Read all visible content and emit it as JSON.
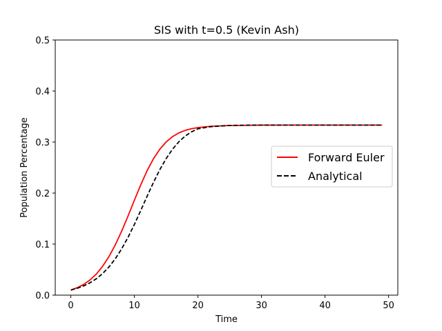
{
  "chart_data": {
    "type": "line",
    "title": "SIS with t=0.5 (Kevin Ash)",
    "xlabel": "Time",
    "ylabel": "Population Percentage",
    "xlim": [
      -2.45,
      51.45
    ],
    "ylim": [
      0,
      0.5
    ],
    "xticks": [
      "0",
      "10",
      "20",
      "30",
      "40",
      "50"
    ],
    "yticks": [
      "0.0",
      "0.1",
      "0.2",
      "0.3",
      "0.4",
      "0.5"
    ],
    "grid": false,
    "legend_position": "center-right",
    "series": [
      {
        "name": "Forward Euler",
        "color": "#ff0000",
        "style": "solid",
        "x": [
          0,
          1,
          2,
          3,
          4,
          5,
          6,
          7,
          8,
          9,
          10,
          11,
          12,
          13,
          14,
          15,
          16,
          17,
          18,
          19,
          20,
          22,
          25,
          30,
          35,
          40,
          45,
          49
        ],
        "y": [
          0.01,
          0.0145,
          0.0208,
          0.0295,
          0.0412,
          0.0565,
          0.0755,
          0.0986,
          0.1253,
          0.155,
          0.1859,
          0.2161,
          0.2438,
          0.2672,
          0.286,
          0.3002,
          0.3106,
          0.3179,
          0.3229,
          0.3262,
          0.3284,
          0.3309,
          0.3324,
          0.3332,
          0.3333,
          0.3333,
          0.3333,
          0.3333
        ]
      },
      {
        "name": "Analytical",
        "color": "#000000",
        "style": "dashed",
        "x": [
          0,
          1,
          2,
          3,
          4,
          5,
          6,
          7,
          8,
          9,
          10,
          11,
          12,
          13,
          14,
          15,
          16,
          17,
          18,
          19,
          20,
          22,
          25,
          30,
          35,
          40,
          45,
          49
        ],
        "y": [
          0.01,
          0.0134,
          0.018,
          0.0241,
          0.032,
          0.0422,
          0.0552,
          0.0713,
          0.0907,
          0.1132,
          0.1385,
          0.1658,
          0.1937,
          0.2208,
          0.2458,
          0.2676,
          0.2859,
          0.3006,
          0.3118,
          0.3201,
          0.326,
          0.3301,
          0.3326,
          0.3333,
          0.3333,
          0.3333,
          0.3333,
          0.3333
        ]
      }
    ]
  }
}
